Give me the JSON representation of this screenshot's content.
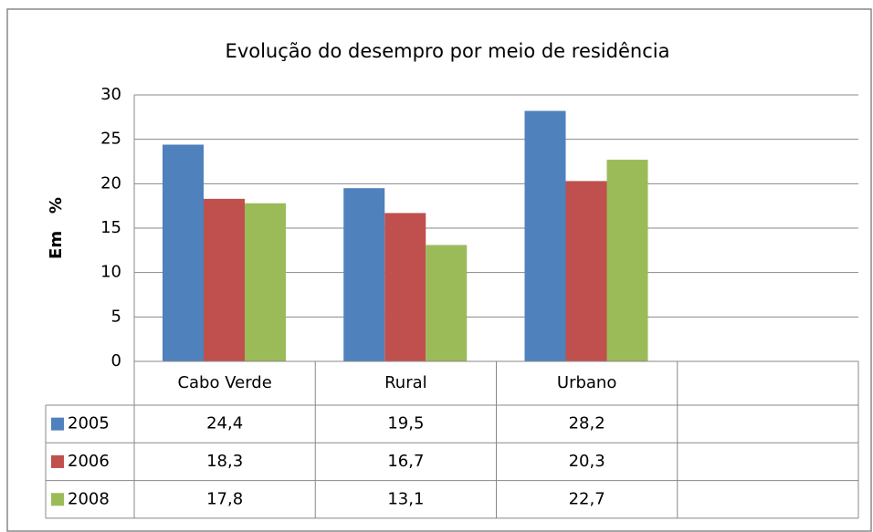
{
  "chart_data": {
    "type": "bar",
    "title": "Evolução do desempro por meio de residência",
    "y_label": "Em   %",
    "categories": [
      "Cabo Verde",
      "Rural",
      "Urbano",
      null
    ],
    "series": [
      {
        "name": "2005",
        "color": "#4f81bd",
        "values": [
          24.4,
          19.5,
          28.2,
          null
        ],
        "value_labels": [
          "24,4",
          "19,5",
          "28,2",
          null
        ]
      },
      {
        "name": "2006",
        "color": "#c0504d",
        "values": [
          18.3,
          16.7,
          20.3,
          null
        ],
        "value_labels": [
          "18,3",
          "16,7",
          "20,3",
          null
        ]
      },
      {
        "name": "2008",
        "color": "#9bbb59",
        "values": [
          17.8,
          13.1,
          22.7,
          null
        ],
        "value_labels": [
          "17,8",
          "13,1",
          "22,7",
          null
        ]
      }
    ],
    "ylim": [
      0,
      30
    ],
    "yticks": [
      0,
      5,
      10,
      15,
      20,
      25,
      30
    ],
    "grid": true,
    "data_table": true
  }
}
